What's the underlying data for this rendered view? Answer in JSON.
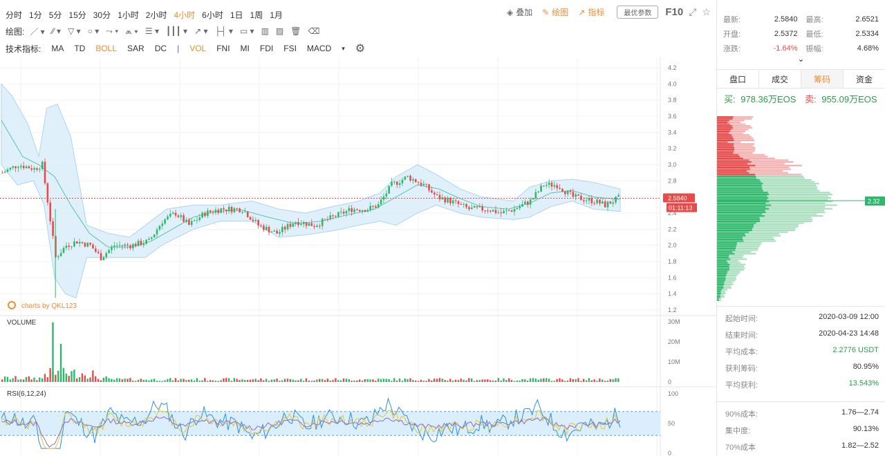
{
  "timeframes": [
    "分时",
    "1分",
    "5分",
    "15分",
    "30分",
    "1小时",
    "2小时",
    "4小时",
    "6小时",
    "1日",
    "1周",
    "1月"
  ],
  "active_timeframe": "4小时",
  "right_tools": {
    "overlay": "叠加",
    "draw": "绘图",
    "indicator": "指标",
    "optimal": "最优参数",
    "f10": "F10"
  },
  "draw_label": "绘图:",
  "indicators_label": "技术指标:",
  "indicators": [
    "MA",
    "TD",
    "BOLL",
    "SAR",
    "DC",
    "VOL",
    "FNI",
    "MI",
    "FDI",
    "FSI",
    "MACD"
  ],
  "active_indicators": [
    "BOLL",
    "VOL"
  ],
  "watermark": "charts by QKL123",
  "price_tag": "2.5840",
  "countdown_tag": "01:11:13",
  "volume_label": "VOLUME",
  "rsi_label": "RSI(6,12,24)",
  "profile_tag": "2.32",
  "chart_data": [
    {
      "type": "candlestick",
      "name": "price",
      "y_ticks": [
        1.2,
        1.4,
        1.6,
        1.8,
        2.0,
        2.2,
        2.4,
        2.6,
        2.8,
        3.0,
        3.2,
        3.4,
        3.6,
        3.8,
        4.0,
        4.2
      ],
      "ylim": [
        1.2,
        4.2
      ],
      "close_path": [
        [
          0,
          2.9
        ],
        [
          6,
          3.0
        ],
        [
          12,
          2.95
        ],
        [
          15,
          3.0
        ],
        [
          17,
          2.55
        ],
        [
          20,
          1.85
        ],
        [
          24,
          2.0
        ],
        [
          28,
          2.05
        ],
        [
          33,
          2.0
        ],
        [
          37,
          1.85
        ],
        [
          42,
          2.0
        ],
        [
          48,
          2.0
        ],
        [
          55,
          2.05
        ],
        [
          60,
          2.3
        ],
        [
          65,
          2.4
        ],
        [
          70,
          2.25
        ],
        [
          76,
          2.4
        ],
        [
          82,
          2.45
        ],
        [
          90,
          2.45
        ],
        [
          96,
          2.25
        ],
        [
          103,
          2.15
        ],
        [
          110,
          2.3
        ],
        [
          117,
          2.25
        ],
        [
          124,
          2.35
        ],
        [
          131,
          2.45
        ],
        [
          137,
          2.45
        ],
        [
          141,
          2.5
        ],
        [
          146,
          2.75
        ],
        [
          152,
          2.85
        ],
        [
          158,
          2.75
        ],
        [
          163,
          2.6
        ],
        [
          168,
          2.55
        ],
        [
          175,
          2.45
        ],
        [
          182,
          2.45
        ],
        [
          187,
          2.4
        ],
        [
          192,
          2.45
        ],
        [
          198,
          2.55
        ],
        [
          203,
          2.75
        ],
        [
          208,
          2.75
        ],
        [
          214,
          2.6
        ],
        [
          222,
          2.55
        ],
        [
          226,
          2.5
        ],
        [
          232,
          2.6
        ]
      ],
      "boll_mid": [
        [
          0,
          3.55
        ],
        [
          8,
          3.1
        ],
        [
          14,
          3.0
        ],
        [
          20,
          2.85
        ],
        [
          26,
          2.5
        ],
        [
          33,
          2.15
        ],
        [
          40,
          1.98
        ],
        [
          48,
          1.98
        ],
        [
          56,
          2.05
        ],
        [
          64,
          2.2
        ],
        [
          72,
          2.35
        ],
        [
          80,
          2.42
        ],
        [
          90,
          2.44
        ],
        [
          100,
          2.35
        ],
        [
          110,
          2.27
        ],
        [
          120,
          2.3
        ],
        [
          130,
          2.38
        ],
        [
          140,
          2.45
        ],
        [
          148,
          2.6
        ],
        [
          156,
          2.75
        ],
        [
          164,
          2.7
        ],
        [
          172,
          2.58
        ],
        [
          180,
          2.48
        ],
        [
          190,
          2.45
        ],
        [
          198,
          2.52
        ],
        [
          206,
          2.65
        ],
        [
          214,
          2.68
        ],
        [
          222,
          2.6
        ],
        [
          232,
          2.57
        ]
      ],
      "boll_upper": [
        [
          0,
          4.0
        ],
        [
          4,
          3.85
        ],
        [
          10,
          3.5
        ],
        [
          14,
          3.1
        ],
        [
          17,
          3.7
        ],
        [
          21,
          3.75
        ],
        [
          26,
          3.35
        ],
        [
          32,
          2.25
        ],
        [
          40,
          2.15
        ],
        [
          48,
          2.1
        ],
        [
          54,
          2.25
        ],
        [
          62,
          2.45
        ],
        [
          72,
          2.5
        ],
        [
          82,
          2.5
        ],
        [
          94,
          2.55
        ],
        [
          104,
          2.45
        ],
        [
          114,
          2.4
        ],
        [
          124,
          2.48
        ],
        [
          134,
          2.55
        ],
        [
          142,
          2.65
        ],
        [
          148,
          2.85
        ],
        [
          156,
          3.0
        ],
        [
          163,
          2.88
        ],
        [
          172,
          2.7
        ],
        [
          180,
          2.6
        ],
        [
          192,
          2.55
        ],
        [
          198,
          2.72
        ],
        [
          206,
          2.8
        ],
        [
          214,
          2.82
        ],
        [
          222,
          2.78
        ],
        [
          232,
          2.7
        ]
      ],
      "boll_lower": [
        [
          0,
          3.0
        ],
        [
          6,
          2.75
        ],
        [
          12,
          2.8
        ],
        [
          16,
          2.5
        ],
        [
          20,
          1.6
        ],
        [
          24,
          1.4
        ],
        [
          28,
          1.35
        ],
        [
          32,
          1.85
        ],
        [
          40,
          1.85
        ],
        [
          48,
          1.85
        ],
        [
          54,
          1.85
        ],
        [
          60,
          2.0
        ],
        [
          72,
          2.2
        ],
        [
          82,
          2.3
        ],
        [
          94,
          2.3
        ],
        [
          104,
          2.1
        ],
        [
          114,
          2.13
        ],
        [
          124,
          2.18
        ],
        [
          134,
          2.25
        ],
        [
          142,
          2.3
        ],
        [
          148,
          2.25
        ],
        [
          156,
          2.4
        ],
        [
          163,
          2.5
        ],
        [
          172,
          2.4
        ],
        [
          180,
          2.35
        ],
        [
          192,
          2.32
        ],
        [
          198,
          2.35
        ],
        [
          206,
          2.48
        ],
        [
          214,
          2.55
        ],
        [
          222,
          2.45
        ],
        [
          232,
          2.42
        ]
      ]
    },
    {
      "type": "bar",
      "name": "VOLUME",
      "y_ticks": [
        "0",
        "10M",
        "20M",
        "30M"
      ],
      "ylim": [
        0,
        30000000
      ]
    },
    {
      "type": "line",
      "name": "RSI(6,12,24)",
      "y_ticks": [
        0,
        50,
        100
      ],
      "ylim": [
        0,
        100
      ],
      "bands": [
        30,
        70
      ]
    }
  ],
  "stats": [
    {
      "k1": "最新:",
      "v1": "2.5840",
      "k2": "最高:",
      "v2": "2.6521"
    },
    {
      "k1": "开盘:",
      "v1": "2.5372",
      "k2": "最低:",
      "v2": "2.5334"
    },
    {
      "k1": "涨跌:",
      "v1": "-1.64%",
      "k2": "振幅:",
      "v2": "4.68%"
    }
  ],
  "tabs": [
    "盘口",
    "成交",
    "筹码",
    "资金"
  ],
  "active_tab": "筹码",
  "buy_label": "买:",
  "buy_value": "978.36万EOS",
  "sell_label": "卖:",
  "sell_value": "955.09万EOS",
  "info": [
    {
      "k": "起始时间:",
      "v": "2020-03-09 12:00",
      "c": "#333"
    },
    {
      "k": "结束时间:",
      "v": "2020-04-23 14:48",
      "c": "#333"
    },
    {
      "k": "平均成本:",
      "v": "2.2776 USDT",
      "c": "#2a9d4a"
    },
    {
      "k": "获利筹码:",
      "v": "80.95%",
      "c": "#333"
    },
    {
      "k": "平均获利:",
      "v": "13.543%",
      "c": "#2a9d4a"
    },
    {
      "k": "90%成本:",
      "v": "1.76—2.74",
      "c": "#333"
    },
    {
      "k": "集中度:",
      "v": "90.13%",
      "c": "#333"
    },
    {
      "k": "70%成本",
      "v": "1.82—2.52",
      "c": "#333"
    }
  ],
  "colors": {
    "up": "#2fb86b",
    "down": "#e84a4a",
    "accent": "#f08c33",
    "band": "#dbeefb",
    "mid": "#5bc0b0"
  }
}
